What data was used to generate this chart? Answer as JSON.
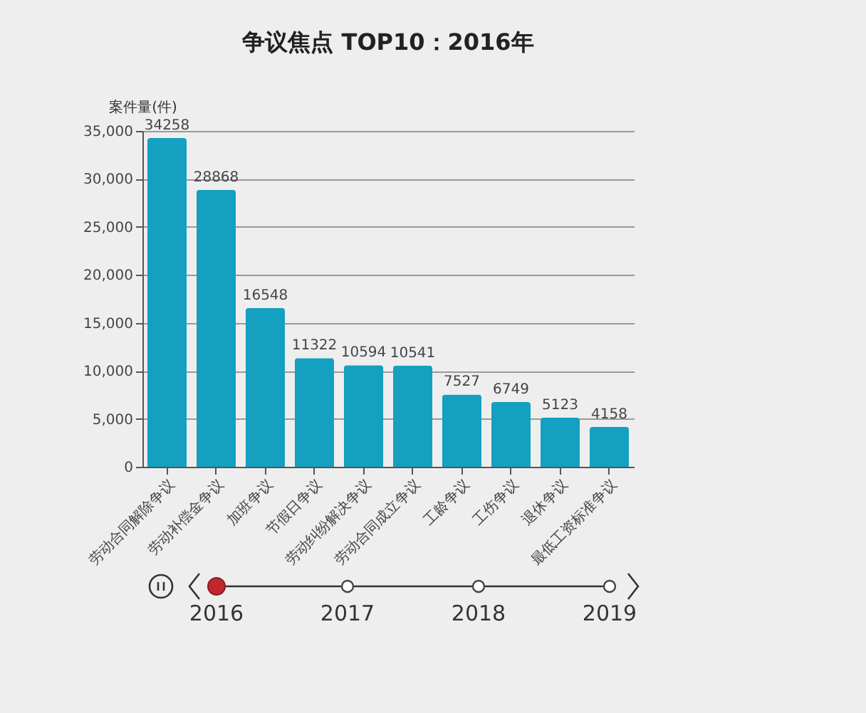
{
  "chart_data": {
    "type": "bar",
    "title": "争议焦点 TOP10：2016年",
    "ylabel": "案件量(件)",
    "categories": [
      "劳动合同解除争议",
      "劳动补偿金争议",
      "加班争议",
      "节假日争议",
      "劳动纠纷解决争议",
      "劳动合同成立争议",
      "工龄争议",
      "工伤争议",
      "退休争议",
      "最低工资标准争议"
    ],
    "values": [
      34258,
      28868,
      16548,
      11322,
      10594,
      10541,
      7527,
      6749,
      5123,
      4158
    ],
    "color": "#14a0c0",
    "ylim": [
      0,
      35000
    ],
    "yticks": [
      0,
      {
        "value": 5000,
        "label": "5,000"
      },
      {
        "value": 10000,
        "label": "10,000"
      },
      {
        "value": 15000,
        "label": "15,000"
      },
      {
        "value": 20000,
        "label": "20,000"
      },
      {
        "value": 25000,
        "label": "25,000"
      },
      {
        "value": 30000,
        "label": "30,000"
      },
      {
        "value": 35000,
        "label": "35,000"
      }
    ],
    "grid": "y",
    "data_labels": true,
    "annotations": [
      "2016",
      "2017",
      "2018",
      "2019"
    ]
  }
}
